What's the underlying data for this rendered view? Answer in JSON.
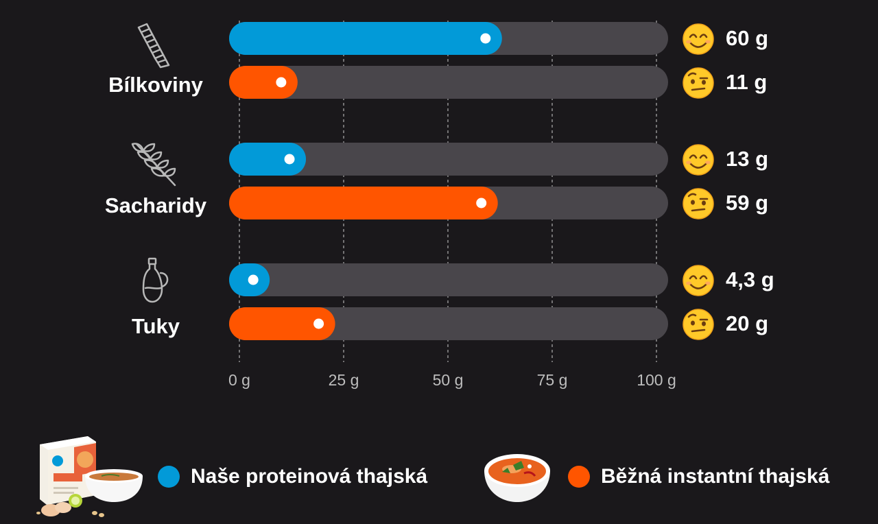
{
  "chart_data": {
    "type": "bar",
    "orientation": "horizontal",
    "categories": [
      "Bílkoviny",
      "Sacharidy",
      "Tuky"
    ],
    "series": [
      {
        "name": "Naše proteinová thajská",
        "values": [
          60,
          13,
          4.3
        ],
        "labels": [
          "60 g",
          "13 g",
          "4,3 g"
        ],
        "color": "#029ad8",
        "indicator": "smiling-face-emoji"
      },
      {
        "name": "Běžná instantní thajská",
        "values": [
          11,
          59,
          20
        ],
        "labels": [
          "11 g",
          "59 g",
          "20 g"
        ],
        "color": "#ff5500",
        "indicator": "raised-eyebrow-face-emoji"
      }
    ],
    "xlim": [
      0,
      100
    ],
    "x_ticks": [
      0,
      25,
      50,
      75,
      100
    ],
    "x_tick_labels": [
      "0 g",
      "25 g",
      "50 g",
      "75 g",
      "100 g"
    ],
    "grid": "vertical-dashed",
    "legend": "bottom"
  },
  "category_icons": [
    "pasta-icon",
    "wheat-icon",
    "oil-bottle-icon"
  ],
  "colors": {
    "background": "#1a181b",
    "track": "#49464b",
    "ours": "#029ad8",
    "regular": "#ff5500",
    "tick_label": "#bdbdbd",
    "grid": "#9a9a9a"
  },
  "legend": {
    "items": [
      {
        "label": "Naše proteinová thajská",
        "color": "#029ad8",
        "image": "protein-soup-package-image"
      },
      {
        "label": "Běžná instantní thajská",
        "color": "#ff5500",
        "image": "instant-soup-bowl-image"
      }
    ]
  }
}
